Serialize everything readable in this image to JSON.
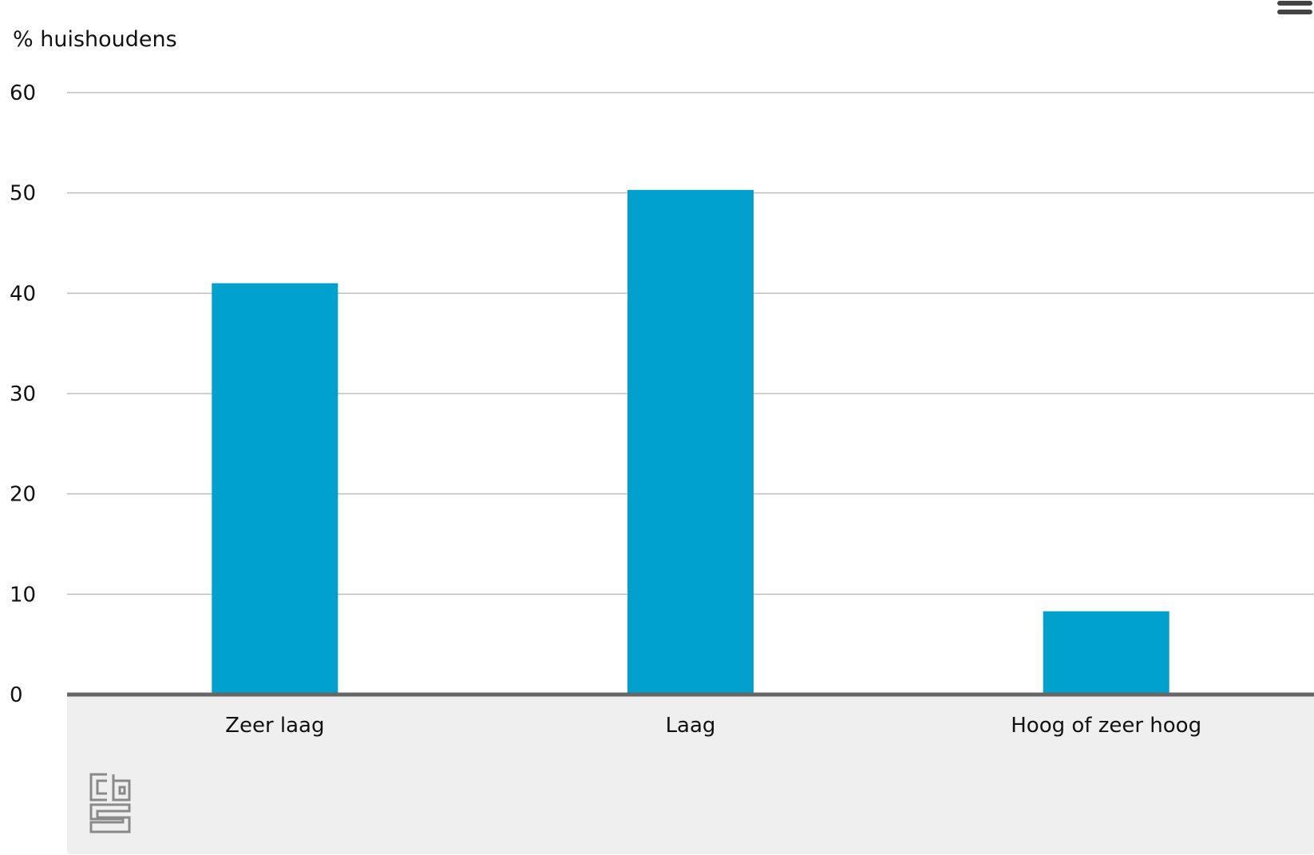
{
  "header": {
    "title_fragment": "",
    "menu_icon": "hamburger-menu-icon"
  },
  "chart_data": {
    "type": "bar",
    "title": "",
    "ylabel": "% huishoudens",
    "xlabel": "",
    "categories": [
      "Zeer laag",
      "Laag",
      "Hoog of zeer hoog"
    ],
    "values": [
      41,
      50.3,
      8.3
    ],
    "ylim": [
      0,
      60
    ],
    "yticks": [
      0,
      10,
      20,
      30,
      40,
      50,
      60
    ],
    "grid": true,
    "legend": "none",
    "colors": {
      "bar": "#00a1cd",
      "grid": "#bdbdbd",
      "baseline": "#666666",
      "category_band": "#efefef"
    }
  },
  "footer": {
    "logo_icon": "cbs-logo-icon"
  }
}
